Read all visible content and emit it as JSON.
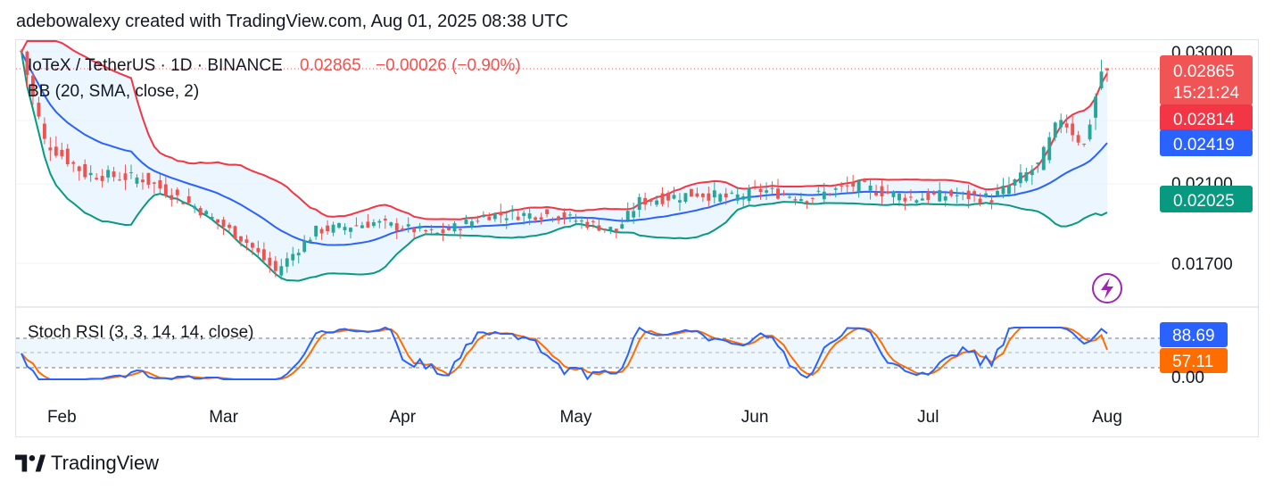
{
  "header": {
    "text": "adebowalexy created with TradingView.com, Aug 01, 2025 08:38 UTC"
  },
  "footer": {
    "brand": "TradingView"
  },
  "colors": {
    "bull": "#26a69a",
    "bear": "#ef5350",
    "bb_upper": "#f23645",
    "bb_basis": "#2962ff",
    "bb_lower": "#089981",
    "bb_fill": "#e3f2fd",
    "stoch_k": "#2962ff",
    "stoch_d": "#ff6d00",
    "price_line": "#ef5350"
  },
  "legend": {
    "symbol": "IoTeX / TetherUS · 1D · BINANCE",
    "last": "0.02865",
    "change": "−0.00026 (−0.90%)",
    "indicator": "BB (20, SMA, close, 2)",
    "stoch": "Stoch RSI (3, 3, 14, 14, close)"
  },
  "price_axis": {
    "ticks": [
      "0.03000",
      "0.02100",
      "0.01700"
    ],
    "labels": {
      "last": "0.02865",
      "countdown": "15:21:24",
      "upper": "0.02814",
      "basis": "0.02419",
      "lower": "0.02025"
    }
  },
  "stoch_axis": {
    "ticks": [
      "0.00"
    ],
    "k_label": "88.69",
    "d_label": "57.11"
  },
  "time_axis": {
    "labels": [
      "Feb",
      "Mar",
      "Apr",
      "May",
      "Jun",
      "Jul",
      "Aug"
    ]
  },
  "chart_data": {
    "type": "candlestick",
    "title": "IoTeX / TetherUS · 1D · BINANCE",
    "interval": "1D",
    "x_range": [
      "2025-01-25",
      "2025-08-01"
    ],
    "y_range": [
      0.0156,
      0.0302
    ],
    "key_points": [
      {
        "date": "2025-01-25",
        "close": 0.03
      },
      {
        "date": "2025-01-29",
        "close": 0.0245
      },
      {
        "date": "2025-02-05",
        "close": 0.0225
      },
      {
        "date": "2025-02-15",
        "close": 0.0222
      },
      {
        "date": "2025-02-24",
        "close": 0.0205
      },
      {
        "date": "2025-03-05",
        "close": 0.0183
      },
      {
        "date": "2025-03-10",
        "close": 0.0165
      },
      {
        "date": "2025-03-17",
        "close": 0.019
      },
      {
        "date": "2025-03-27",
        "close": 0.0195
      },
      {
        "date": "2025-04-07",
        "close": 0.0188
      },
      {
        "date": "2025-04-16",
        "close": 0.02
      },
      {
        "date": "2025-04-27",
        "close": 0.02
      },
      {
        "date": "2025-05-08",
        "close": 0.019
      },
      {
        "date": "2025-05-12",
        "close": 0.0208
      },
      {
        "date": "2025-05-22",
        "close": 0.0213
      },
      {
        "date": "2025-05-28",
        "close": 0.021
      },
      {
        "date": "2025-06-02",
        "close": 0.0215
      },
      {
        "date": "2025-06-10",
        "close": 0.021
      },
      {
        "date": "2025-06-18",
        "close": 0.0218
      },
      {
        "date": "2025-06-28",
        "close": 0.021
      },
      {
        "date": "2025-07-05",
        "close": 0.0212
      },
      {
        "date": "2025-07-12",
        "close": 0.021
      },
      {
        "date": "2025-07-20",
        "close": 0.023
      },
      {
        "date": "2025-07-24",
        "close": 0.026
      },
      {
        "date": "2025-07-28",
        "close": 0.0242
      },
      {
        "date": "2025-07-31",
        "close": 0.0288
      },
      {
        "date": "2025-08-01",
        "close": 0.02865
      }
    ],
    "bollinger": {
      "params": "20, SMA, close, 2",
      "upper_last": 0.02814,
      "basis_last": 0.02419,
      "lower_last": 0.02025
    },
    "stoch_rsi": {
      "params": "3, 3, 14, 14, close",
      "k_last": 88.69,
      "d_last": 57.11,
      "levels": [
        80,
        50,
        20
      ],
      "y_range": [
        0,
        100
      ]
    }
  }
}
